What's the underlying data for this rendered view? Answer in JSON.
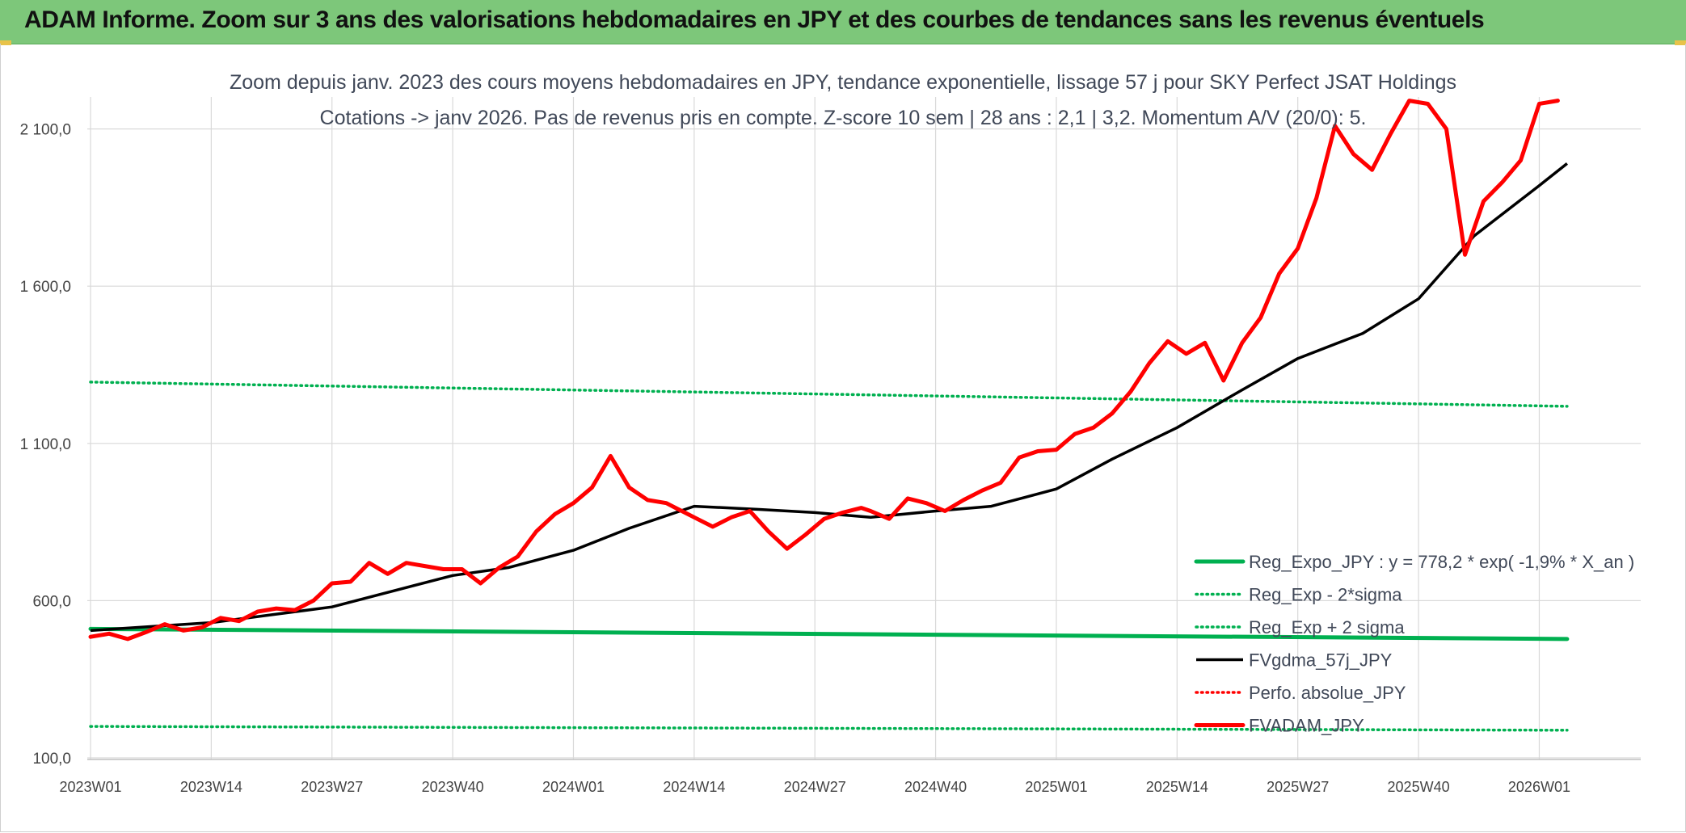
{
  "header": {
    "title": "ADAM Informe. Zoom sur 3 ans des valorisations hebdomadaires en JPY et des courbes de tendances sans les revenus éventuels"
  },
  "chart_data": {
    "type": "line",
    "title_line1": "Zoom depuis janv. 2023 des cours moyens hebdomadaires en JPY, tendance exponentielle, lissage 57 j pour SKY Perfect JSAT Holdings",
    "title_line2": "Cotations -> janv 2026. Pas de revenus pris en compte. Z-score 10 sem | 28 ans : 2,1  | 3,2. Momentum A/V (20/0): 5.",
    "ylim": [
      100,
      2300
    ],
    "y_ticks": [
      {
        "value": 100,
        "label": "100,0"
      },
      {
        "value": 600,
        "label": "600,0"
      },
      {
        "value": 1100,
        "label": "1 100,0"
      },
      {
        "value": 1600,
        "label": "1 600,0"
      },
      {
        "value": 2100,
        "label": "2 100,0"
      }
    ],
    "x_range": [
      0,
      158
    ],
    "x_ticks": [
      {
        "index": 0,
        "label": "2023W01"
      },
      {
        "index": 13,
        "label": "2023W14"
      },
      {
        "index": 26,
        "label": "2023W27"
      },
      {
        "index": 39,
        "label": "2023W40"
      },
      {
        "index": 52,
        "label": "2024W01"
      },
      {
        "index": 65,
        "label": "2024W14"
      },
      {
        "index": 78,
        "label": "2024W27"
      },
      {
        "index": 91,
        "label": "2024W40"
      },
      {
        "index": 104,
        "label": "2025W01"
      },
      {
        "index": 117,
        "label": "2025W14"
      },
      {
        "index": 130,
        "label": "2025W27"
      },
      {
        "index": 143,
        "label": "2025W40"
      },
      {
        "index": 156,
        "label": "2026W01"
      }
    ],
    "series": [
      {
        "name": "Reg_Expo_JPY : y = 778,2 * exp( -1,9% *  X_an )",
        "color": "#00b050",
        "style": "solid-thick",
        "x": [
          0,
          159
        ],
        "values": [
          510,
          478
        ]
      },
      {
        "name": "Reg_Exp - 2*sigma",
        "color": "#00b050",
        "style": "dotted",
        "x": [
          0,
          159
        ],
        "values": [
          200,
          188
        ]
      },
      {
        "name": "Reg_Exp + 2 sigma",
        "color": "#00b050",
        "style": "dotted",
        "x": [
          0,
          159
        ],
        "values": [
          1295,
          1218
        ]
      },
      {
        "name": "FVgdma_57j_JPY",
        "color": "#000000",
        "style": "solid",
        "x": [
          0,
          13,
          26,
          39,
          45,
          52,
          58,
          65,
          72,
          78,
          84,
          91,
          97,
          104,
          110,
          117,
          124,
          130,
          137,
          143,
          149,
          156,
          159
        ],
        "values": [
          505,
          530,
          580,
          680,
          705,
          760,
          830,
          900,
          890,
          880,
          865,
          885,
          900,
          955,
          1050,
          1150,
          1270,
          1370,
          1450,
          1560,
          1760,
          1920,
          1990
        ]
      },
      {
        "name": "Perfo. absolue_JPY",
        "color": "#ff0000",
        "style": "dotted",
        "x": [],
        "values": []
      },
      {
        "name": "FVADAM_JPY",
        "color": "#ff0000",
        "style": "solid-thick",
        "x": [
          0,
          2,
          4,
          6,
          8,
          10,
          12,
          14,
          16,
          18,
          20,
          22,
          24,
          26,
          28,
          30,
          32,
          34,
          36,
          38,
          40,
          42,
          44,
          46,
          48,
          50,
          52,
          54,
          56,
          58,
          60,
          62,
          63,
          65,
          67,
          69,
          71,
          73,
          75,
          77,
          79,
          81,
          83,
          84,
          86,
          88,
          90,
          92,
          94,
          96,
          98,
          100,
          102,
          104,
          106,
          108,
          110,
          112,
          114,
          116,
          118,
          120,
          122,
          124,
          126,
          128,
          130,
          132,
          134,
          136,
          138,
          140,
          142,
          144,
          146,
          148,
          150,
          152,
          154,
          156,
          158
        ],
        "values": [
          485,
          495,
          478,
          500,
          525,
          505,
          515,
          545,
          535,
          565,
          575,
          570,
          600,
          655,
          660,
          720,
          685,
          720,
          710,
          700,
          700,
          655,
          705,
          740,
          820,
          875,
          910,
          960,
          1060,
          960,
          920,
          910,
          895,
          865,
          835,
          865,
          885,
          820,
          765,
          810,
          860,
          880,
          895,
          885,
          860,
          925,
          910,
          885,
          920,
          950,
          975,
          1055,
          1075,
          1080,
          1130,
          1150,
          1195,
          1265,
          1355,
          1425,
          1385,
          1420,
          1300,
          1420,
          1500,
          1640,
          1720,
          1880,
          2110,
          2020,
          1970,
          2085,
          2190,
          2180,
          2100,
          1700,
          1870,
          1930,
          2000,
          2180,
          2190
        ]
      }
    ],
    "legend": {
      "position": "center-right",
      "entries": [
        {
          "label": "Reg_Expo_JPY : y = 778,2 * exp( -1,9% *  X_an )",
          "color": "#00b050",
          "style": "solid-thick"
        },
        {
          "label": "Reg_Exp - 2*sigma",
          "color": "#00b050",
          "style": "dotted"
        },
        {
          "label": "Reg_Exp + 2 sigma",
          "color": "#00b050",
          "style": "dotted"
        },
        {
          "label": "FVgdma_57j_JPY",
          "color": "#000000",
          "style": "solid"
        },
        {
          "label": "Perfo. absolue_JPY",
          "color": "#ff0000",
          "style": "dotted"
        },
        {
          "label": "FVADAM_JPY",
          "color": "#ff0000",
          "style": "solid-thick"
        }
      ]
    },
    "grid": true
  }
}
